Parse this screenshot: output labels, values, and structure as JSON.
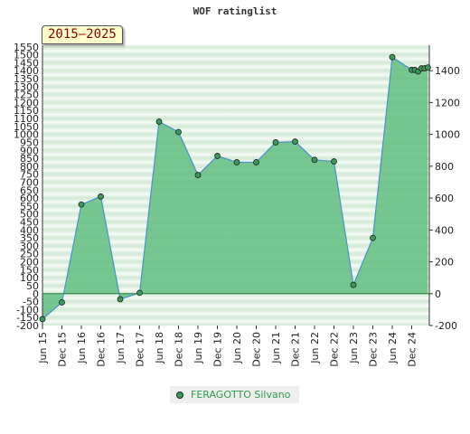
{
  "chart_data": {
    "type": "area",
    "title": "WOF ratinglist",
    "badge": "2015–2025",
    "x": [
      "Jun 15",
      "Dec 15",
      "Jun 16",
      "Dec 16",
      "Jun 17",
      "Dec 17",
      "Jun 18",
      "Dec 18",
      "Jun 19",
      "Dec 19",
      "Jun 20",
      "Dec 20",
      "Jun 21",
      "Dec 21",
      "Jun 22",
      "Dec 22",
      "Jun 23",
      "Dec 23",
      "Jun 24",
      "Dec 24"
    ],
    "series": [
      {
        "name": "FERAGOTTO Silvano",
        "x": [
          0,
          1,
          2,
          3,
          4,
          5,
          6,
          7,
          8,
          9,
          10,
          11,
          12,
          13,
          14,
          15,
          16,
          17,
          18,
          19,
          19.16,
          19.33,
          19.5,
          19.66,
          19.83
        ],
        "values": [
          -160,
          -55,
          560,
          610,
          -35,
          5,
          1080,
          1015,
          745,
          865,
          825,
          825,
          950,
          955,
          840,
          830,
          55,
          350,
          1485,
          1405,
          1405,
          1395,
          1415,
          1415,
          1420
        ]
      }
    ],
    "y_left_ticks": [
      "1550",
      "1500",
      "1450",
      "1400",
      "1350",
      "1300",
      "1250",
      "1200",
      "1150",
      "1100",
      "1050",
      "1000",
      "950",
      "900",
      "850",
      "800",
      "750",
      "700",
      "650",
      "600",
      "550",
      "500",
      "450",
      "400",
      "350",
      "300",
      "250",
      "200",
      "150",
      "100",
      "50",
      "0",
      "-50",
      "-100",
      "-150",
      "-200"
    ],
    "y_right_ticks": [
      "1400",
      "1200",
      "1000",
      "800",
      "600",
      "400",
      "200",
      "0",
      "-200"
    ],
    "ylim": [
      -200,
      1560
    ],
    "colors": {
      "line": "#4a90d0",
      "area": "#62bd80",
      "marker": "#3a9a5a",
      "legend_text": "#2e9c4a"
    }
  }
}
